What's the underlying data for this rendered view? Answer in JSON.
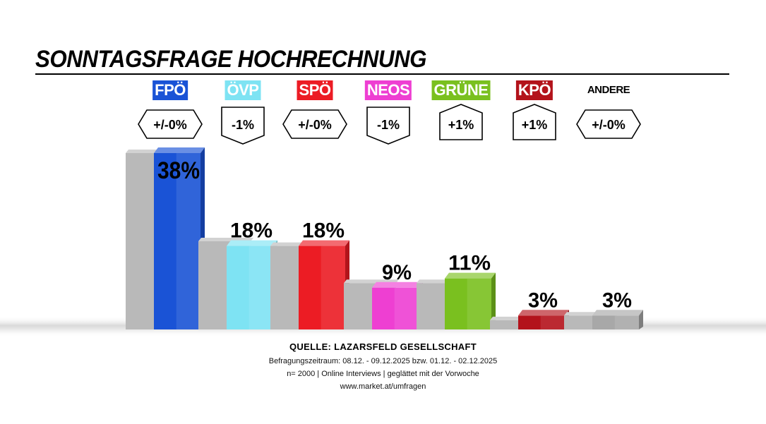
{
  "title": "SONNTAGSFRAGE HOCHRECHNUNG",
  "colors": {
    "FPÖ": "#1a53d6",
    "ÖVP": "#7ee3f3",
    "SPÖ": "#ec1c24",
    "NEOS": "#ee3fd2",
    "GRÜNE": "#7ac01f",
    "KPÖ": "#b3131b",
    "ANDERE": "#a8a8a8",
    "previous": "#b9b9b9"
  },
  "chart_data": {
    "type": "bar",
    "categories": [
      "FPÖ",
      "ÖVP",
      "SPÖ",
      "NEOS",
      "GRÜNE",
      "KPÖ",
      "ANDERE"
    ],
    "series": [
      {
        "name": "",
        "values": [
          38,
          18,
          18,
          9,
          11,
          3,
          3
        ]
      }
    ],
    "previous_values": [
      38,
      19,
      18,
      10,
      10,
      2,
      3
    ],
    "value_labels": [
      "38%",
      "18%",
      "18%",
      "9%",
      "11%",
      "3%",
      "3%"
    ],
    "changes": [
      "+/-0%",
      "-1%",
      "+/-0%",
      "-1%",
      "+1%",
      "+1%",
      "+/-0%"
    ],
    "change_shapes": [
      "hexagon",
      "down",
      "hexagon",
      "down",
      "up",
      "up",
      "hexagon"
    ],
    "ylim": [
      0,
      40
    ],
    "grid": false,
    "legend": "none"
  },
  "source": {
    "heading": "QUELLE: LAZARSFELD GESELLSCHAFT",
    "line1": "Befragungszeitraum:  08.12. - 09.12.2025  bzw. 01.12. - 02.12.2025",
    "line2": "n= 2000 | Online Interviews | geglättet mit der Vorwoche",
    "line3": "www.market.at/umfragen"
  }
}
